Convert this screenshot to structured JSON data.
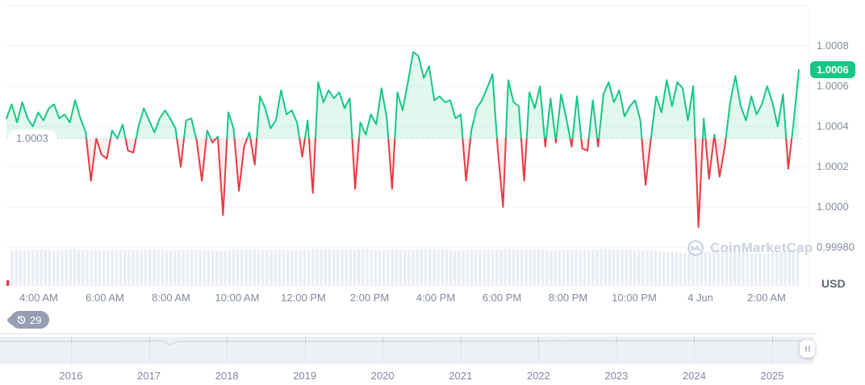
{
  "colors": {
    "up": "#16c784",
    "down": "#ea3943",
    "up_fill": "rgba(22,199,132,0.13)",
    "down_fill": "rgba(234,57,67,0.09)",
    "grid": "#f0f3f7",
    "axis_text": "#7f8a9e",
    "volume_bar": "#e9edf3",
    "badge_bg": "#16c784",
    "reference_dotted": "#a8b2c4",
    "watermark": "#ccd3df",
    "minimap_band": "#edf1f6"
  },
  "chart_data": {
    "type": "line",
    "unit_label": "USD",
    "watermark_text": "CoinMarketCap",
    "history_badge_count": "29",
    "current_price": {
      "label": "1.0006",
      "value": 1.00068
    },
    "reference_line": {
      "label": "1.0003",
      "value": 1.00034
    },
    "y_ticks": [
      {
        "label": "1.0008",
        "value": 1.0008
      },
      {
        "label": "1.0006",
        "value": 1.0006
      },
      {
        "label": "1.0004",
        "value": 1.0004
      },
      {
        "label": "1.0002",
        "value": 1.0002
      },
      {
        "label": "1.0000",
        "value": 1.0
      },
      {
        "label": "0.99980",
        "value": 0.9998
      }
    ],
    "x_ticks": [
      "4:00 AM",
      "6:00 AM",
      "8:00 AM",
      "10:00 AM",
      "12:00 PM",
      "2:00 PM",
      "4:00 PM",
      "6:00 PM",
      "8:00 PM",
      "10:00 PM",
      "4 Jun",
      "2:00 AM"
    ],
    "series": {
      "name": "price",
      "values": [
        1.00044,
        1.00051,
        1.00042,
        1.00052,
        1.00044,
        1.0004,
        1.00047,
        1.00043,
        1.00049,
        1.00051,
        1.00044,
        1.00046,
        1.00042,
        1.00053,
        1.00044,
        1.00037,
        1.00013,
        1.00034,
        1.00026,
        1.00024,
        1.00038,
        1.00034,
        1.00041,
        1.00028,
        1.00027,
        1.0004,
        1.00049,
        1.00043,
        1.00037,
        1.00044,
        1.00048,
        1.00044,
        1.00039,
        1.0002,
        1.00043,
        1.00044,
        1.00033,
        1.00013,
        1.00038,
        1.00032,
        1.00035,
        0.99996,
        1.00047,
        1.00039,
        1.00008,
        1.0003,
        1.00037,
        1.00021,
        1.00055,
        1.00049,
        1.00039,
        1.00043,
        1.00058,
        1.00046,
        1.00048,
        1.00042,
        1.00025,
        1.00043,
        1.00007,
        1.00062,
        1.00052,
        1.00058,
        1.00054,
        1.00057,
        1.00049,
        1.00054,
        1.00009,
        1.00042,
        1.00036,
        1.00046,
        1.00041,
        1.00059,
        1.00044,
        1.00009,
        1.00057,
        1.00048,
        1.00062,
        1.00077,
        1.00075,
        1.00064,
        1.0007,
        1.00053,
        1.00055,
        1.00052,
        1.00053,
        1.00044,
        1.00046,
        1.00013,
        1.00038,
        1.00049,
        1.00053,
        1.00059,
        1.00066,
        1.00029,
        1.0,
        1.00063,
        1.00052,
        1.0005,
        1.00013,
        1.00057,
        1.00049,
        1.0006,
        1.0003,
        1.00054,
        1.00032,
        1.00056,
        1.00044,
        1.0003,
        1.00055,
        1.00029,
        1.00028,
        1.00053,
        1.0003,
        1.00056,
        1.00062,
        1.00052,
        1.00058,
        1.00045,
        1.0005,
        1.00053,
        1.00043,
        1.00011,
        1.00034,
        1.00055,
        1.00047,
        1.00063,
        1.0005,
        1.00062,
        1.00059,
        1.00043,
        1.0006,
        0.9999,
        1.00044,
        1.00014,
        1.00036,
        1.00015,
        1.0003,
        1.00052,
        1.00065,
        1.0005,
        1.00043,
        1.00055,
        1.00046,
        1.00051,
        1.0006,
        1.00052,
        1.0004,
        1.00056,
        1.00019,
        1.00042,
        1.00068
      ]
    },
    "volume_profile": [
      0.95,
      0.93,
      0.96,
      0.94,
      0.97,
      0.95,
      0.94,
      0.96,
      0.95,
      0.97,
      0.94,
      0.96,
      0.95,
      0.92,
      0.96,
      0.97,
      0.95,
      0.96,
      0.94,
      0.97,
      0.96,
      0.95,
      0.97,
      0.94,
      0.96,
      0.95,
      0.97,
      0.96,
      0.94,
      0.96,
      0.95,
      0.97,
      0.95,
      0.96,
      0.94,
      0.96,
      0.95,
      0.97,
      0.96,
      0.95,
      0.94,
      0.9,
      0.87,
      0.89,
      0.92,
      0.95,
      0.86,
      0.84,
      0.92,
      0.95
    ],
    "volume_first_bar": {
      "height": 0.15
    },
    "minimap_years": [
      "2016",
      "2017",
      "2018",
      "2019",
      "2020",
      "2021",
      "2022",
      "2023",
      "2024",
      "2025"
    ]
  }
}
